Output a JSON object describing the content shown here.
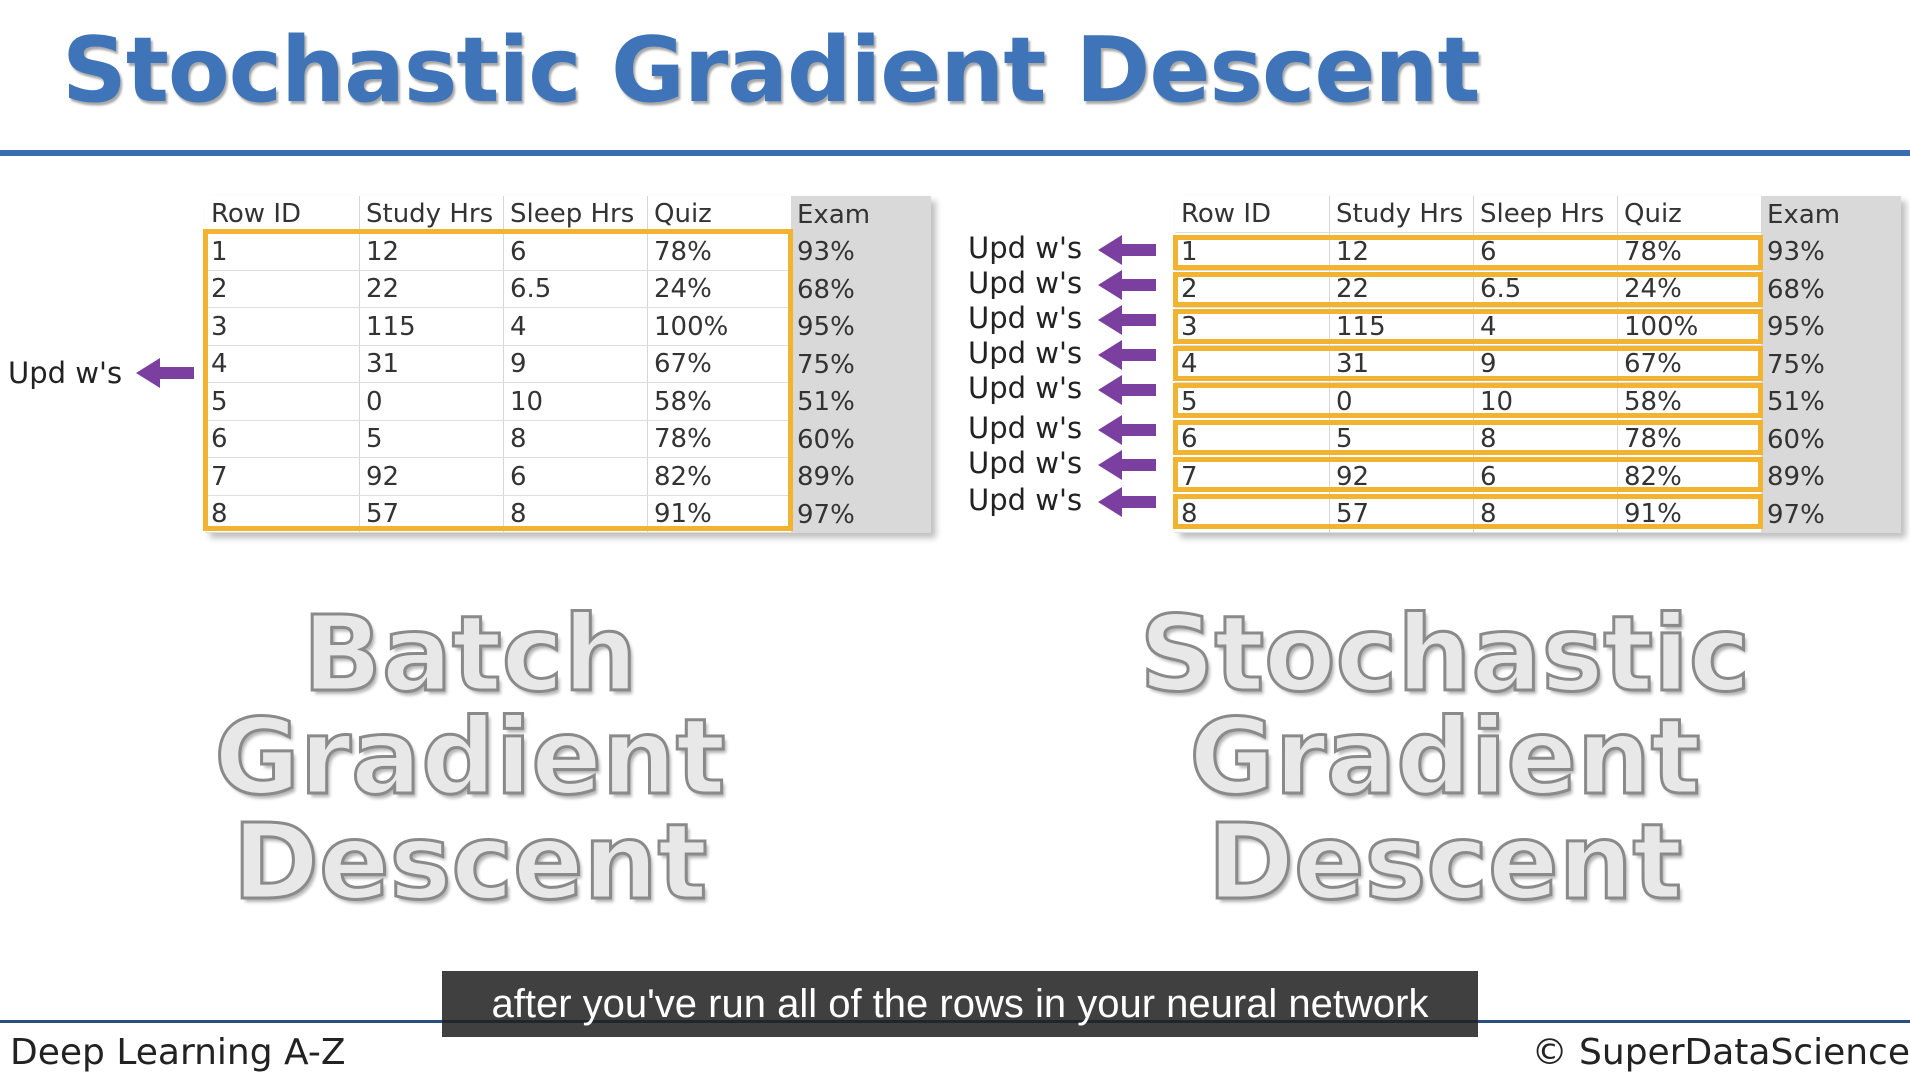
{
  "title": "Stochastic Gradient Descent",
  "table": {
    "headers": [
      "Row ID",
      "Study Hrs",
      "Sleep Hrs",
      "Quiz",
      "Exam"
    ],
    "rows": [
      [
        "1",
        "12",
        "6",
        "78%",
        "93%"
      ],
      [
        "2",
        "22",
        "6.5",
        "24%",
        "68%"
      ],
      [
        "3",
        "115",
        "4",
        "100%",
        "95%"
      ],
      [
        "4",
        "31",
        "9",
        "67%",
        "75%"
      ],
      [
        "5",
        "0",
        "10",
        "58%",
        "51%"
      ],
      [
        "6",
        "5",
        "8",
        "78%",
        "60%"
      ],
      [
        "7",
        "92",
        "6",
        "82%",
        "89%"
      ],
      [
        "8",
        "57",
        "8",
        "91%",
        "97%"
      ]
    ]
  },
  "update_label": "Upd w's",
  "batch_label": [
    "Batch",
    "Gradient",
    "Descent"
  ],
  "stochastic_label": [
    "Stochastic",
    "Gradient",
    "Descent"
  ],
  "footer": {
    "course": "Deep Learning A-Z",
    "copyright": "© SuperDataScience"
  },
  "subtitle": "after you've run all of the rows in your neural network",
  "colors": {
    "title": "#3f74b8",
    "highlight": "#f2b330",
    "arrow": "#7b3fa0"
  }
}
